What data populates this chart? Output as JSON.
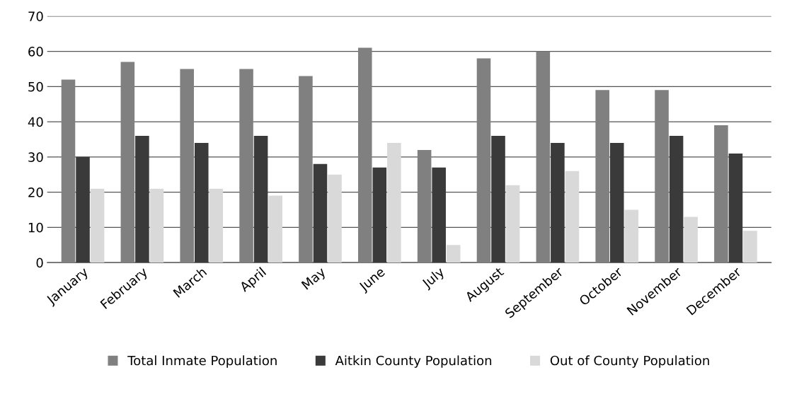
{
  "chart_data": {
    "type": "bar",
    "categories": [
      "January",
      "February",
      "March",
      "April",
      "May",
      "June",
      "July",
      "August",
      "September",
      "October",
      "November",
      "December"
    ],
    "series": [
      {
        "name": "Total Inmate Population",
        "color": "#808080",
        "values": [
          52,
          57,
          55,
          55,
          53,
          61,
          32,
          58,
          60,
          49,
          49,
          39
        ]
      },
      {
        "name": "Aitkin County Population",
        "color": "#3a3a3a",
        "values": [
          30,
          36,
          34,
          36,
          28,
          27,
          27,
          36,
          34,
          34,
          36,
          31
        ]
      },
      {
        "name": "Out of County Population",
        "color": "#d9d9d9",
        "values": [
          21,
          21,
          21,
          19,
          25,
          34,
          5,
          22,
          26,
          15,
          13,
          9
        ]
      }
    ],
    "ylim": [
      0,
      70
    ],
    "yticks": [
      0,
      10,
      20,
      30,
      40,
      50,
      60,
      70
    ],
    "grid": "y",
    "legend": "bottom"
  }
}
